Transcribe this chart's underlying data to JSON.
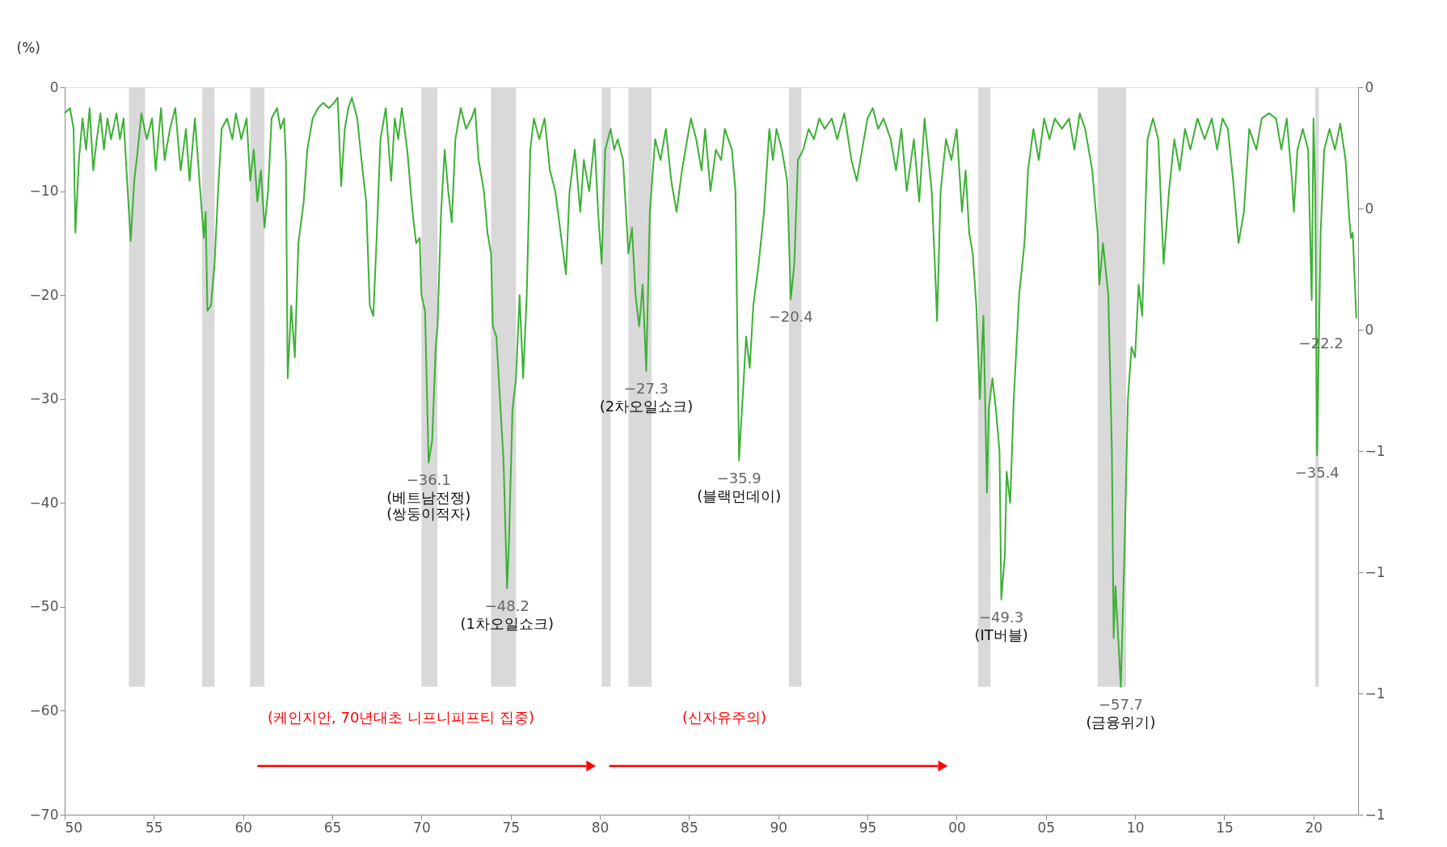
{
  "chart_data": {
    "type": "line",
    "ylabel": "(%)",
    "grid": false,
    "x": [
      1950.0,
      1950.3,
      1950.5,
      1950.6,
      1950.8,
      1951.0,
      1951.2,
      1951.4,
      1951.6,
      1951.8,
      1952.0,
      1952.2,
      1952.4,
      1952.6,
      1952.9,
      1953.1,
      1953.3,
      1953.5,
      1953.7,
      1953.9,
      1954.1,
      1954.3,
      1954.6,
      1954.9,
      1955.1,
      1955.4,
      1955.6,
      1955.9,
      1956.2,
      1956.5,
      1956.8,
      1957.0,
      1957.3,
      1957.6,
      1957.8,
      1957.9,
      1958.0,
      1958.2,
      1958.4,
      1958.6,
      1958.8,
      1959.1,
      1959.4,
      1959.6,
      1959.9,
      1960.2,
      1960.4,
      1960.6,
      1960.8,
      1961.0,
      1961.2,
      1961.4,
      1961.6,
      1961.9,
      1962.1,
      1962.3,
      1962.4,
      1962.5,
      1962.7,
      1962.9,
      1963.1,
      1963.4,
      1963.6,
      1963.9,
      1964.2,
      1964.5,
      1964.8,
      1965.1,
      1965.3,
      1965.5,
      1965.7,
      1965.9,
      1966.1,
      1966.4,
      1966.7,
      1966.9,
      1967.1,
      1967.3,
      1967.5,
      1967.7,
      1968.0,
      1968.3,
      1968.5,
      1968.7,
      1968.9,
      1969.2,
      1969.5,
      1969.7,
      1969.9,
      1970.0,
      1970.2,
      1970.4,
      1970.6,
      1970.8,
      1970.9,
      1971.1,
      1971.3,
      1971.5,
      1971.7,
      1971.9,
      1972.2,
      1972.5,
      1972.8,
      1973.0,
      1973.2,
      1973.5,
      1973.7,
      1973.9,
      1974.0,
      1974.2,
      1974.4,
      1974.6,
      1974.8,
      1974.9,
      1975.1,
      1975.3,
      1975.5,
      1975.7,
      1975.9,
      1976.1,
      1976.3,
      1976.6,
      1976.9,
      1977.2,
      1977.5,
      1977.8,
      1978.1,
      1978.3,
      1978.6,
      1978.9,
      1979.1,
      1979.4,
      1979.7,
      1979.9,
      1980.1,
      1980.3,
      1980.6,
      1980.8,
      1981.0,
      1981.3,
      1981.6,
      1981.8,
      1982.0,
      1982.2,
      1982.4,
      1982.6,
      1982.8,
      1983.1,
      1983.4,
      1983.7,
      1984.0,
      1984.3,
      1984.6,
      1984.9,
      1985.1,
      1985.4,
      1985.7,
      1985.9,
      1986.2,
      1986.5,
      1986.8,
      1987.0,
      1987.4,
      1987.6,
      1987.8,
      1988.0,
      1988.2,
      1988.4,
      1988.6,
      1988.9,
      1989.2,
      1989.5,
      1989.7,
      1989.9,
      1990.2,
      1990.5,
      1990.7,
      1990.9,
      1991.1,
      1991.4,
      1991.7,
      1992.0,
      1992.3,
      1992.6,
      1993.0,
      1993.3,
      1993.7,
      1994.1,
      1994.4,
      1994.7,
      1995.0,
      1995.3,
      1995.6,
      1995.9,
      1996.3,
      1996.6,
      1996.9,
      1997.2,
      1997.6,
      1997.9,
      1998.2,
      1998.6,
      1998.8,
      1998.9,
      1999.1,
      1999.4,
      1999.7,
      2000.0,
      2000.3,
      2000.5,
      2000.7,
      2000.9,
      2001.1,
      2001.3,
      2001.5,
      2001.7,
      2001.8,
      2002.0,
      2002.2,
      2002.4,
      2002.5,
      2002.7,
      2002.8,
      2003.0,
      2003.2,
      2003.5,
      2003.8,
      2004.0,
      2004.3,
      2004.6,
      2004.9,
      2005.2,
      2005.5,
      2005.9,
      2006.3,
      2006.6,
      2006.9,
      2007.2,
      2007.6,
      2007.9,
      2008.0,
      2008.2,
      2008.5,
      2008.7,
      2008.8,
      2008.9,
      2009.2,
      2009.4,
      2009.6,
      2009.8,
      2010.0,
      2010.2,
      2010.4,
      2010.7,
      2011.0,
      2011.3,
      2011.6,
      2011.9,
      2012.2,
      2012.5,
      2012.8,
      2013.1,
      2013.5,
      2013.9,
      2014.3,
      2014.6,
      2014.9,
      2015.2,
      2015.5,
      2015.8,
      2016.1,
      2016.4,
      2016.8,
      2017.1,
      2017.5,
      2017.9,
      2018.2,
      2018.5,
      2018.8,
      2018.9,
      2019.1,
      2019.4,
      2019.7,
      2019.9,
      2020.0,
      2020.1,
      2020.2,
      2020.4,
      2020.6,
      2020.9,
      2021.2,
      2021.5,
      2021.8,
      2022.0,
      2022.1,
      2022.2,
      2022.4
    ],
    "series": [
      {
        "color": "#3cb035",
        "values": [
          -2.5,
          -2,
          -4,
          -14,
          -7,
          -3,
          -6,
          -2,
          -8,
          -5,
          -2.5,
          -6,
          -3,
          -5,
          -2.5,
          -5,
          -3,
          -9,
          -14.8,
          -9,
          -6,
          -2.5,
          -5,
          -3,
          -8,
          -2,
          -7,
          -4,
          -2,
          -8,
          -4,
          -9,
          -3,
          -10,
          -14.5,
          -12,
          -21.5,
          -21,
          -17,
          -10,
          -4,
          -3,
          -5,
          -2.5,
          -5,
          -3,
          -9,
          -6,
          -11,
          -8,
          -13.5,
          -10,
          -3,
          -2,
          -4,
          -3,
          -7,
          -28,
          -21,
          -26,
          -15,
          -11,
          -6,
          -3,
          -2,
          -1.5,
          -2,
          -1.5,
          -1,
          -9.5,
          -4,
          -2,
          -1,
          -3,
          -8,
          -11,
          -21,
          -22,
          -14,
          -5,
          -2,
          -9,
          -3,
          -5,
          -2,
          -6,
          -12,
          -15,
          -14.5,
          -20,
          -21.5,
          -36.1,
          -34,
          -25,
          -23,
          -12,
          -6,
          -10,
          -13,
          -5,
          -2,
          -4,
          -3,
          -2,
          -7,
          -10,
          -14,
          -16,
          -23,
          -24,
          -30,
          -36,
          -48.2,
          -44,
          -31,
          -28,
          -20,
          -28,
          -20,
          -6,
          -3,
          -5,
          -3,
          -8,
          -10,
          -14,
          -18,
          -10,
          -6,
          -12,
          -7,
          -10,
          -5,
          -12,
          -17,
          -6,
          -4,
          -6,
          -5,
          -7,
          -16,
          -13.5,
          -20,
          -23,
          -19,
          -27.3,
          -12,
          -5,
          -7,
          -4,
          -9,
          -12,
          -8,
          -5,
          -3,
          -5,
          -8,
          -4,
          -10,
          -6,
          -7,
          -4,
          -6,
          -10,
          -35.9,
          -30,
          -24,
          -27,
          -21,
          -17,
          -12,
          -4,
          -7,
          -4,
          -6,
          -9,
          -20.4,
          -17,
          -7,
          -6,
          -4,
          -5,
          -3,
          -4,
          -3,
          -5,
          -2.5,
          -7,
          -9,
          -6,
          -3,
          -2,
          -4,
          -3,
          -5,
          -8,
          -4,
          -10,
          -5,
          -11,
          -3,
          -10,
          -18,
          -22.5,
          -10,
          -5,
          -7,
          -4,
          -12,
          -8,
          -14,
          -16,
          -21,
          -30,
          -22,
          -39,
          -31,
          -28,
          -31,
          -35,
          -49.3,
          -45,
          -37,
          -40,
          -30,
          -20,
          -15,
          -8,
          -4,
          -7,
          -3,
          -5,
          -3,
          -4,
          -3,
          -6,
          -2.5,
          -4,
          -8,
          -14,
          -19,
          -15,
          -20,
          -35,
          -53,
          -48,
          -57.7,
          -45,
          -30,
          -25,
          -26,
          -19,
          -22,
          -5,
          -3,
          -5,
          -17,
          -10,
          -5,
          -8,
          -4,
          -6,
          -3,
          -5,
          -3,
          -6,
          -3,
          -4,
          -9,
          -15,
          -12,
          -4,
          -6,
          -3,
          -2.5,
          -3,
          -6,
          -3,
          -9,
          -12,
          -6,
          -4,
          -6,
          -20.5,
          -3,
          -10,
          -35.4,
          -14,
          -6,
          -4,
          -6,
          -3.5,
          -7,
          -12.5,
          -14.5,
          -14,
          -22.2
        ]
      }
    ],
    "xlim": [
      1950,
      2022.5
    ],
    "xticks": [
      {
        "value": 1950,
        "label": "50"
      },
      {
        "value": 1955,
        "label": "55"
      },
      {
        "value": 1960,
        "label": "60"
      },
      {
        "value": 1965,
        "label": "65"
      },
      {
        "value": 1970,
        "label": "70"
      },
      {
        "value": 1975,
        "label": "75"
      },
      {
        "value": 1980,
        "label": "80"
      },
      {
        "value": 1985,
        "label": "85"
      },
      {
        "value": 1990,
        "label": "90"
      },
      {
        "value": 1995,
        "label": "95"
      },
      {
        "value": 2000,
        "label": "00"
      },
      {
        "value": 2005,
        "label": "05"
      },
      {
        "value": 2010,
        "label": "10"
      },
      {
        "value": 2015,
        "label": "15"
      },
      {
        "value": 2020,
        "label": "20"
      }
    ],
    "ylim": [
      -70,
      0
    ],
    "yticks": [
      {
        "value": 0,
        "label": "0"
      },
      {
        "value": -10,
        "label": "−10"
      },
      {
        "value": -20,
        "label": "−20"
      },
      {
        "value": -30,
        "label": "−30"
      },
      {
        "value": -40,
        "label": "−40"
      },
      {
        "value": -50,
        "label": "−50"
      },
      {
        "value": -60,
        "label": "−60"
      },
      {
        "value": -70,
        "label": "−70"
      }
    ],
    "y2lim": [
      -1.2,
      0
    ],
    "y2ticks": [
      {
        "value": 0,
        "label": "0"
      },
      {
        "value": -0.2,
        "label": "0"
      },
      {
        "value": -0.4,
        "label": "0"
      },
      {
        "value": -0.6,
        "label": "−1"
      },
      {
        "value": -0.8,
        "label": "−1"
      },
      {
        "value": -1.0,
        "label": "−1"
      },
      {
        "value": -1.2,
        "label": "−1"
      }
    ],
    "bands": [
      {
        "axis": "x",
        "from": 1953.6,
        "to": 1954.5,
        "color": "#d9d9d9"
      },
      {
        "axis": "x",
        "from": 1957.7,
        "to": 1958.4,
        "color": "#d9d9d9"
      },
      {
        "axis": "x",
        "from": 1960.4,
        "to": 1961.2,
        "color": "#d9d9d9"
      },
      {
        "axis": "x",
        "from": 1970.0,
        "to": 1970.9,
        "color": "#d9d9d9"
      },
      {
        "axis": "x",
        "from": 1973.9,
        "to": 1975.3,
        "color": "#d9d9d9"
      },
      {
        "axis": "x",
        "from": 1980.1,
        "to": 1980.6,
        "color": "#d9d9d9"
      },
      {
        "axis": "x",
        "from": 1981.6,
        "to": 1982.9,
        "color": "#d9d9d9"
      },
      {
        "axis": "x",
        "from": 1990.6,
        "to": 1991.3,
        "color": "#d9d9d9"
      },
      {
        "axis": "x",
        "from": 2001.2,
        "to": 2001.9,
        "color": "#d9d9d9"
      },
      {
        "axis": "x",
        "from": 2007.9,
        "to": 2009.5,
        "color": "#d9d9d9"
      },
      {
        "axis": "x",
        "from": 2020.1,
        "to": 2020.3,
        "color": "#d9d9d9"
      }
    ],
    "annotations": [
      {
        "text": "−36.1",
        "x": 1970.4,
        "y": -36.1
      },
      {
        "text": "(베트남전쟁)\n(쌍둥이적자)",
        "x": 1970.4,
        "y": -36.1
      },
      {
        "text": "−48.2",
        "x": 1974.8,
        "y": -48.2
      },
      {
        "text": "(1차오일쇼크)",
        "x": 1974.8,
        "y": -48.2
      },
      {
        "text": "−27.3",
        "x": 1982.6,
        "y": -27.3
      },
      {
        "text": "(2차오일쇼크)",
        "x": 1982.6,
        "y": -27.3
      },
      {
        "text": "−35.9",
        "x": 1987.8,
        "y": -35.9
      },
      {
        "text": "(블랙먼데이)",
        "x": 1987.8,
        "y": -35.9
      },
      {
        "text": "−20.4",
        "x": 1990.7,
        "y": -20.4
      },
      {
        "text": "−49.3",
        "x": 2002.5,
        "y": -49.3
      },
      {
        "text": "(IT버블)",
        "x": 2002.5,
        "y": -49.3
      },
      {
        "text": "−57.7",
        "x": 2009.2,
        "y": -57.7
      },
      {
        "text": "(금융위기)",
        "x": 2009.2,
        "y": -57.7
      },
      {
        "text": "−35.4",
        "x": 2020.2,
        "y": -35.4
      },
      {
        "text": "−22.2",
        "x": 2022.4,
        "y": -22.2
      },
      "(케인지안, 70년대초 니프니피프티 집중)",
      "(신자유주의)"
    ]
  }
}
